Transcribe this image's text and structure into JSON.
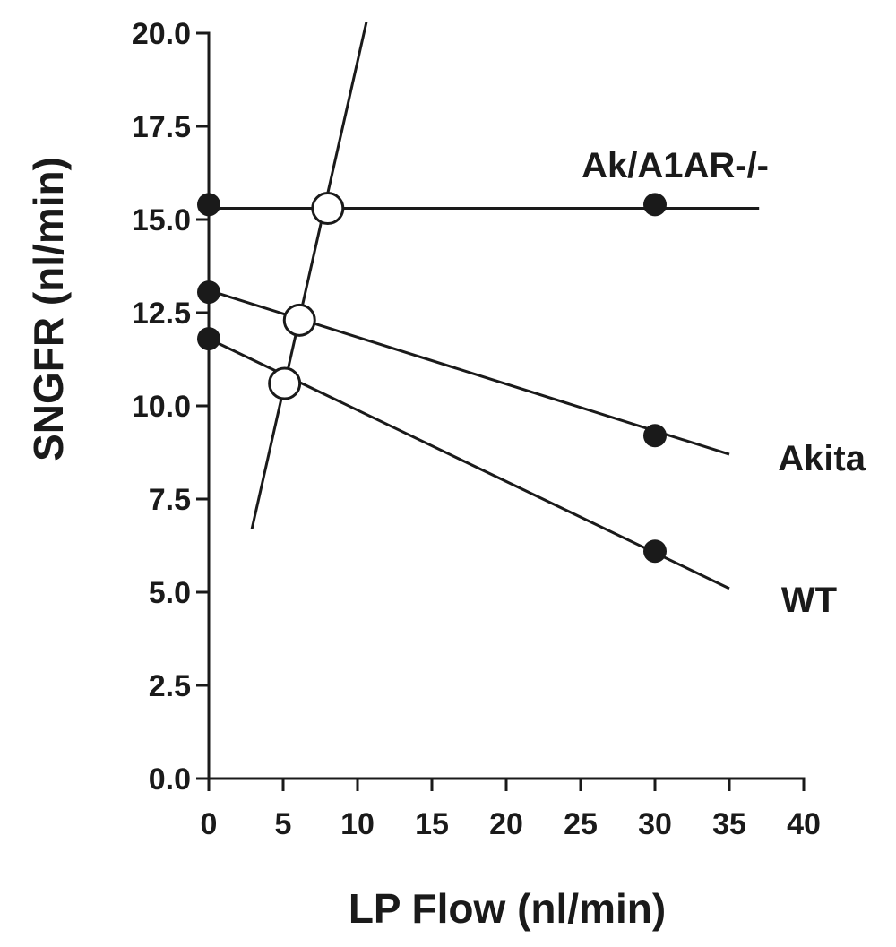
{
  "chart_data": {
    "type": "line",
    "title": "",
    "xlabel": "LP Flow (nl/min)",
    "ylabel": "SNGFR (nl/min)",
    "xlim": [
      0,
      40
    ],
    "ylim": [
      0,
      20
    ],
    "x_ticks": [
      "0",
      "5",
      "10",
      "15",
      "20",
      "25",
      "30",
      "35",
      "40"
    ],
    "y_ticks": [
      "0.0",
      "2.5",
      "5.0",
      "7.5",
      "10.0",
      "12.5",
      "15.0",
      "17.5",
      "20.0"
    ],
    "grid": false,
    "legend": "inline labels",
    "series": [
      {
        "name": "Ak/A1AR-/-",
        "line": [
          [
            0,
            15.3
          ],
          [
            37,
            15.3
          ]
        ],
        "points": [
          [
            0,
            15.4
          ],
          [
            30,
            15.4
          ]
        ],
        "intersection": [
          8,
          15.3
        ]
      },
      {
        "name": "Akita",
        "line": [
          [
            0,
            13.1
          ],
          [
            35,
            8.7
          ]
        ],
        "points": [
          [
            0,
            13.05
          ],
          [
            30,
            9.2
          ]
        ],
        "intersection": [
          6.1,
          12.3
        ]
      },
      {
        "name": "WT",
        "line": [
          [
            0,
            11.8
          ],
          [
            35,
            5.1
          ]
        ],
        "points": [
          [
            0,
            11.8
          ],
          [
            30,
            6.1
          ]
        ],
        "intersection": [
          5.1,
          10.6
        ]
      }
    ],
    "feedback_line": [
      [
        2.9,
        6.7
      ],
      [
        10.6,
        20.3
      ]
    ],
    "marker_styles": {
      "measured": "filled circle",
      "intersection": "open circle"
    },
    "colors": {
      "line": "#1a1a1a",
      "marker": "#1a1a1a"
    }
  }
}
